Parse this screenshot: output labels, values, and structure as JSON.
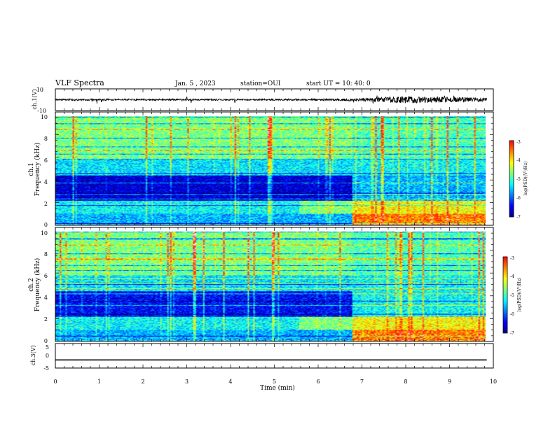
{
  "header": {
    "title": "VLF Spectra",
    "date": "Jan. 5 , 2023",
    "station": "station=OUI",
    "start": "start UT =  10: 40: 0"
  },
  "chart_data": [
    {
      "type": "line",
      "name": "ch1-waveform",
      "ylabel": "ch.1(V)",
      "ylim": [
        -10,
        10
      ],
      "yticks": [
        "10",
        "-10"
      ],
      "xlim": [
        0,
        10
      ],
      "x_extent_min": 9.85,
      "amplitude_profile": [
        {
          "t": 0.0,
          "amp": 1.2
        },
        {
          "t": 1.0,
          "amp": 1.4
        },
        {
          "t": 2.0,
          "amp": 1.2
        },
        {
          "t": 3.0,
          "amp": 1.3
        },
        {
          "t": 4.0,
          "amp": 1.2
        },
        {
          "t": 5.0,
          "amp": 1.3
        },
        {
          "t": 6.0,
          "amp": 1.4
        },
        {
          "t": 6.8,
          "amp": 2.0
        },
        {
          "t": 7.5,
          "amp": 4.0
        },
        {
          "t": 8.0,
          "amp": 5.5
        },
        {
          "t": 8.6,
          "amp": 4.5
        },
        {
          "t": 9.2,
          "amp": 4.0
        },
        {
          "t": 9.85,
          "amp": 3.0
        }
      ],
      "spikes": [
        {
          "t": 0.95,
          "v": -3.5
        },
        {
          "t": 1.05,
          "v": -2
        },
        {
          "t": 3.0,
          "v": 2.5
        },
        {
          "t": 3.1,
          "v": -2.5
        },
        {
          "t": 4.1,
          "v": -2.5
        }
      ]
    },
    {
      "type": "heatmap",
      "name": "ch1-spectrogram",
      "ylabel": "ch.1",
      "ylabel2": "Frequency (kHz)",
      "ylim": [
        0,
        10
      ],
      "yticks": [
        "0",
        "2",
        "4",
        "6",
        "8",
        "10"
      ],
      "xlim": [
        0,
        10
      ],
      "x_extent_min": 9.85,
      "colorbar": {
        "label": "log(PSD)(V²/Hz)",
        "range": [
          -7,
          -3
        ],
        "ticks": [
          "-3",
          "-4",
          "-5",
          "-6",
          "-7"
        ]
      },
      "level_profile": [
        {
          "f_max": 1.0,
          "before": -5.8,
          "after": -4.0
        },
        {
          "f_max": 2.2,
          "before": -5.5,
          "after": -4.5
        },
        {
          "f_max": 4.5,
          "before": -6.7,
          "after": -5.8
        },
        {
          "f_max": 6.0,
          "before": -5.6,
          "after": -5.5
        },
        {
          "f_max": 10.0,
          "before": -5.0,
          "after": -5.2
        }
      ],
      "transition_min": 6.8,
      "mid_band_onset_min": 5.6
    },
    {
      "type": "heatmap",
      "name": "ch2-spectrogram",
      "ylabel": "ch.2",
      "ylabel2": "Frequency (kHz)",
      "ylim": [
        0,
        10
      ],
      "yticks": [
        "0",
        "2",
        "4",
        "6",
        "8",
        "10"
      ],
      "xlim": [
        0,
        10
      ],
      "x_extent_min": 9.85,
      "colorbar": {
        "label": "log(PSD)(V²/Hz)",
        "range": [
          -7,
          -3
        ],
        "ticks": [
          "-3",
          "-4",
          "-5",
          "-6",
          "-7"
        ]
      },
      "level_profile": [
        {
          "f_max": 1.0,
          "before": -5.8,
          "after": -4.0
        },
        {
          "f_max": 2.2,
          "before": -5.5,
          "after": -4.5
        },
        {
          "f_max": 4.5,
          "before": -6.5,
          "after": -5.5
        },
        {
          "f_max": 6.0,
          "before": -5.6,
          "after": -5.5
        },
        {
          "f_max": 10.0,
          "before": -5.0,
          "after": -5.2
        }
      ],
      "transition_min": 6.8,
      "mid_band_onset_min": 5.6
    },
    {
      "type": "line",
      "name": "ch3-waveform",
      "ylabel": "ch.3(V)",
      "ylim": [
        -5,
        5
      ],
      "yticks": [
        "5",
        "0",
        "-5"
      ],
      "xlim": [
        0,
        10
      ],
      "x_extent_min": 9.85,
      "constant_value": -1.7
    }
  ],
  "xaxis": {
    "label": "Time (min)",
    "ticks": [
      "0",
      "1",
      "2",
      "3",
      "4",
      "5",
      "6",
      "7",
      "8",
      "9",
      "10"
    ]
  },
  "colormap": [
    "#00008f",
    "#0000ff",
    "#007fff",
    "#00ffff",
    "#7fff7f",
    "#ffff00",
    "#ff7f00",
    "#ff0000",
    "#ffe8e8"
  ]
}
